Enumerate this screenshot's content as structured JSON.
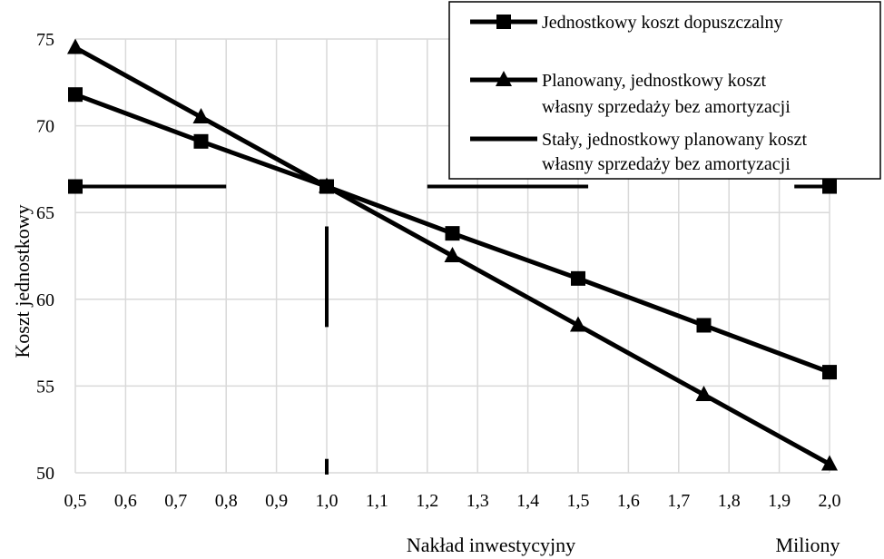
{
  "chart_data": {
    "type": "line",
    "x": [
      0.5,
      0.75,
      1.0,
      1.25,
      1.5,
      1.75,
      2.0
    ],
    "x_tick_labels": [
      "0,5",
      "0,6",
      "0,7",
      "0,8",
      "0,9",
      "1,0",
      "1,1",
      "1,2",
      "1,3",
      "1,4",
      "1,5",
      "1,6",
      "1,7",
      "1,8",
      "1,9",
      "2,0"
    ],
    "x_ticks": [
      0.5,
      0.6,
      0.7,
      0.8,
      0.9,
      1.0,
      1.1,
      1.2,
      1.3,
      1.4,
      1.5,
      1.6,
      1.7,
      1.8,
      1.9,
      2.0
    ],
    "y_tick_labels": [
      "50",
      "55",
      "60",
      "65",
      "70",
      "75"
    ],
    "y_ticks": [
      50,
      55,
      60,
      65,
      70,
      75
    ],
    "xlim": [
      0.5,
      2.0
    ],
    "ylim": [
      50,
      75
    ],
    "xlabel": "Nakład inwestycyjny",
    "x_unit_label": "Miliony",
    "ylabel": "Koszt jednostkowy",
    "grid": true,
    "legend_position": "top-right",
    "series": [
      {
        "name": "Jednostkowy koszt dopuszczalny",
        "marker": "square",
        "values": [
          71.8,
          69.1,
          66.5,
          63.8,
          61.2,
          58.5,
          55.8
        ]
      },
      {
        "name_lines": [
          "Planowany, jednostkowy koszt",
          "własny sprzedaży bez amortyzacji"
        ],
        "marker": "triangle",
        "values": [
          74.5,
          70.5,
          66.5,
          62.5,
          58.5,
          54.5,
          50.5
        ]
      },
      {
        "name_lines": [
          "Stały, jednostkowy planowany koszt",
          "własny sprzedaży bez amortyzacji"
        ],
        "marker": "none",
        "points": [
          [
            0.5,
            66.5
          ],
          [
            1.0,
            66.5
          ],
          [
            2.0,
            66.5
          ]
        ],
        "segments": [
          [
            [
              0.5,
              66.5
            ],
            [
              0.8,
              66.5
            ]
          ],
          [
            [
              1.2,
              66.5
            ],
            [
              1.52,
              66.5
            ]
          ],
          [
            [
              1.93,
              66.5
            ],
            [
              2.0,
              66.5
            ]
          ],
          [
            [
              1.0,
              64.2
            ],
            [
              1.0,
              58.4
            ]
          ],
          [
            [
              1.0,
              50.8
            ],
            [
              1.0,
              49.9
            ]
          ]
        ]
      }
    ]
  }
}
